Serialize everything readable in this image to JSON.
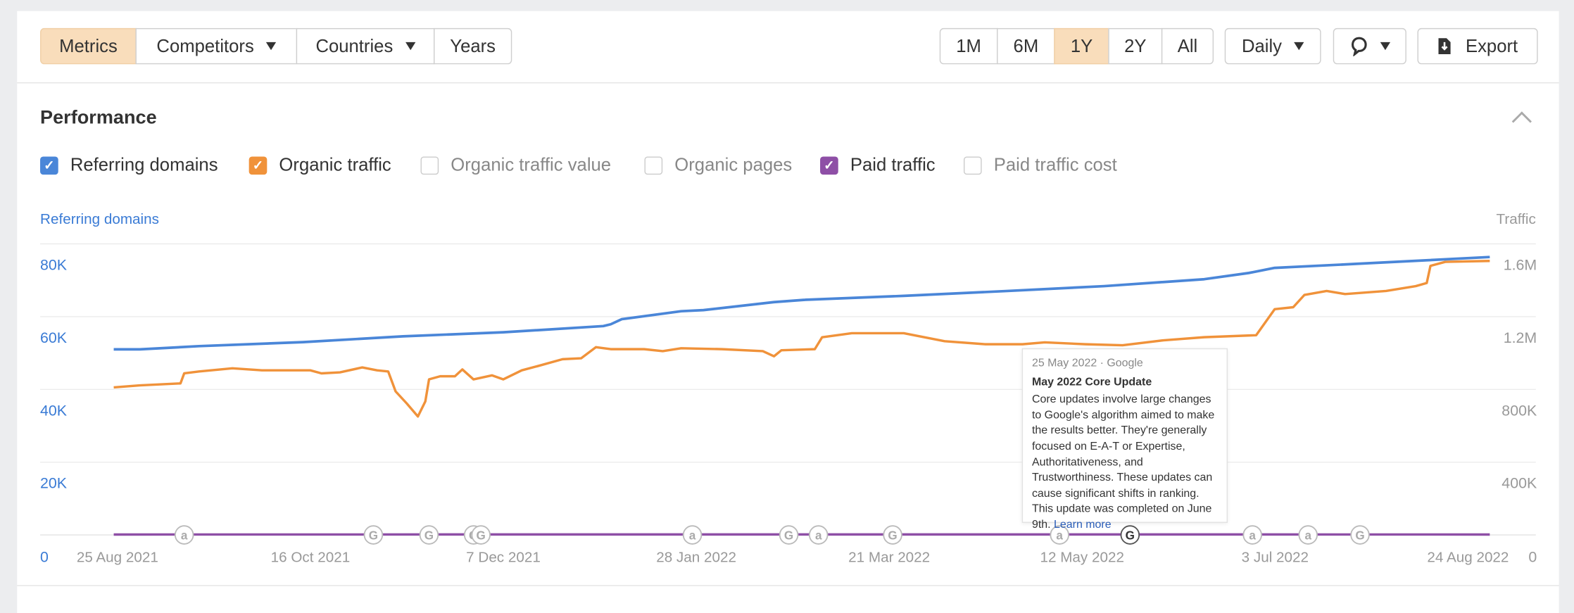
{
  "toolbar": {
    "left_tabs": [
      {
        "label": "Metrics",
        "active": true
      },
      {
        "label": "Competitors",
        "dropdown": true
      },
      {
        "label": "Countries",
        "dropdown": true
      },
      {
        "label": "Years"
      }
    ],
    "ranges": [
      {
        "label": "1M"
      },
      {
        "label": "6M"
      },
      {
        "label": "1Y",
        "active": true
      },
      {
        "label": "2Y"
      },
      {
        "label": "All"
      }
    ],
    "interval": "Daily",
    "annotations_icon": "speech-bubble-icon",
    "export_label": "Export",
    "export_icon": "download-file-icon",
    "active_color": "#f9ddbb"
  },
  "section": {
    "title": "Performance",
    "collapse_icon": "chevron-up-icon"
  },
  "metrics": [
    {
      "label": "Referring domains",
      "checked": true,
      "color": "#4a86d8"
    },
    {
      "label": "Organic traffic",
      "checked": true,
      "color": "#f0923a"
    },
    {
      "label": "Organic traffic value",
      "checked": false
    },
    {
      "label": "Organic pages",
      "checked": false
    },
    {
      "label": "Paid traffic",
      "checked": true,
      "color": "#8e4fa6"
    },
    {
      "label": "Paid traffic cost",
      "checked": false
    }
  ],
  "chart_data": {
    "type": "line",
    "left_axis_title": "Referring domains",
    "right_axis_title": "Traffic",
    "left_ticks": [
      "80K",
      "60K",
      "40K",
      "20K",
      "0"
    ],
    "right_ticks": [
      "1.6M",
      "1.2M",
      "800K",
      "400K",
      "0"
    ],
    "ylim_left": [
      0,
      80000
    ],
    "ylim_right": [
      0,
      1600000
    ],
    "x_ticks": [
      "25 Aug 2021",
      "16 Oct 2021",
      "7 Dec 2021",
      "28 Jan 2022",
      "21 Mar 2022",
      "12 May 2022",
      "3 Jul 2022",
      "24 Aug 2022"
    ],
    "grid": true,
    "series": [
      {
        "name": "Referring domains",
        "axis": "left",
        "color": "#4a86d8",
        "points": [
          [
            "2021-08-24",
            51000
          ],
          [
            "2021-08-31",
            51000
          ],
          [
            "2021-09-16",
            51900
          ],
          [
            "2021-10-14",
            53000
          ],
          [
            "2021-11-10",
            54600
          ],
          [
            "2021-12-07",
            55700
          ],
          [
            "2022-01-03",
            57400
          ],
          [
            "2022-01-05",
            57900
          ],
          [
            "2022-01-08",
            59300
          ],
          [
            "2022-01-24",
            61500
          ],
          [
            "2022-01-30",
            61800
          ],
          [
            "2022-02-18",
            64000
          ],
          [
            "2022-02-26",
            64600
          ],
          [
            "2022-03-25",
            65700
          ],
          [
            "2022-04-21",
            67000
          ],
          [
            "2022-05-18",
            68400
          ],
          [
            "2022-06-14",
            70300
          ],
          [
            "2022-06-26",
            72000
          ],
          [
            "2022-07-03",
            73400
          ],
          [
            "2022-07-25",
            74500
          ],
          [
            "2022-08-30",
            76400
          ]
        ]
      },
      {
        "name": "Organic traffic",
        "axis": "right",
        "color": "#f0923a",
        "points": [
          [
            "2021-08-24",
            811000
          ],
          [
            "2021-08-31",
            822000
          ],
          [
            "2021-09-11",
            833000
          ],
          [
            "2021-09-12",
            888000
          ],
          [
            "2021-09-16",
            899000
          ],
          [
            "2021-09-25",
            916000
          ],
          [
            "2021-10-03",
            905000
          ],
          [
            "2021-10-16",
            905000
          ],
          [
            "2021-10-19",
            888000
          ],
          [
            "2021-10-24",
            894000
          ],
          [
            "2021-10-30",
            921000
          ],
          [
            "2021-11-03",
            905000
          ],
          [
            "2021-11-06",
            899000
          ],
          [
            "2021-11-08",
            789000
          ],
          [
            "2021-11-11",
            723000
          ],
          [
            "2021-11-14",
            651000
          ],
          [
            "2021-11-16",
            734000
          ],
          [
            "2021-11-17",
            855000
          ],
          [
            "2021-11-20",
            872000
          ],
          [
            "2021-11-24",
            872000
          ],
          [
            "2021-11-26",
            910000
          ],
          [
            "2021-11-29",
            855000
          ],
          [
            "2021-12-04",
            877000
          ],
          [
            "2021-12-07",
            855000
          ],
          [
            "2021-12-12",
            905000
          ],
          [
            "2021-12-17",
            932000
          ],
          [
            "2021-12-23",
            966000
          ],
          [
            "2021-12-28",
            971000
          ],
          [
            "2022-01-01",
            1032000
          ],
          [
            "2022-01-05",
            1021000
          ],
          [
            "2022-01-14",
            1021000
          ],
          [
            "2022-01-19",
            1010000
          ],
          [
            "2022-01-24",
            1026000
          ],
          [
            "2022-02-04",
            1021000
          ],
          [
            "2022-02-15",
            1010000
          ],
          [
            "2022-02-18",
            982000
          ],
          [
            "2022-02-20",
            1015000
          ],
          [
            "2022-03-01",
            1021000
          ],
          [
            "2022-03-03",
            1087000
          ],
          [
            "2022-03-11",
            1109000
          ],
          [
            "2022-03-25",
            1109000
          ],
          [
            "2022-04-05",
            1065000
          ],
          [
            "2022-04-16",
            1048000
          ],
          [
            "2022-04-26",
            1048000
          ],
          [
            "2022-05-02",
            1059000
          ],
          [
            "2022-05-13",
            1048000
          ],
          [
            "2022-05-23",
            1043000
          ],
          [
            "2022-06-03",
            1070000
          ],
          [
            "2022-06-14",
            1087000
          ],
          [
            "2022-06-28",
            1098000
          ],
          [
            "2022-07-03",
            1241000
          ],
          [
            "2022-07-08",
            1252000
          ],
          [
            "2022-07-11",
            1319000
          ],
          [
            "2022-07-17",
            1341000
          ],
          [
            "2022-07-22",
            1324000
          ],
          [
            "2022-08-02",
            1341000
          ],
          [
            "2022-08-10",
            1368000
          ],
          [
            "2022-08-13",
            1385000
          ],
          [
            "2022-08-14",
            1479000
          ],
          [
            "2022-08-18",
            1501000
          ],
          [
            "2022-08-30",
            1506000
          ]
        ]
      },
      {
        "name": "Paid traffic",
        "axis": "right",
        "color": "#8e4fa6",
        "points": [
          [
            "2021-08-24",
            2000
          ],
          [
            "2021-12-01",
            2500
          ],
          [
            "2022-03-01",
            3000
          ],
          [
            "2022-06-01",
            2500
          ],
          [
            "2022-08-30",
            2000
          ]
        ]
      }
    ],
    "events": [
      {
        "date": "2021-09-12",
        "type": "a"
      },
      {
        "date": "2021-11-02",
        "type": "G"
      },
      {
        "date": "2021-11-17",
        "type": "G"
      },
      {
        "date": "2021-11-29",
        "type": "G"
      },
      {
        "date": "2021-12-01",
        "type": "G"
      },
      {
        "date": "2022-01-27",
        "type": "a"
      },
      {
        "date": "2022-02-22",
        "type": "G"
      },
      {
        "date": "2022-03-02",
        "type": "a"
      },
      {
        "date": "2022-03-22",
        "type": "G"
      },
      {
        "date": "2022-05-06",
        "type": "a"
      },
      {
        "date": "2022-05-25",
        "type": "G",
        "active": true
      },
      {
        "date": "2022-06-27",
        "type": "a"
      },
      {
        "date": "2022-07-12",
        "type": "a"
      },
      {
        "date": "2022-07-26",
        "type": "G"
      }
    ]
  },
  "tooltip": {
    "date_source": "25 May 2022 · Google",
    "title": "May 2022 Core Update",
    "body": "Core updates involve large changes to Google's algorithm aimed to make the results better. They're generally focused on E-A-T or Expertise, Authoritativeness, and Trustworthiness. These updates can cause significant shifts in ranking. This update was completed on June 9th.",
    "link": "Learn more"
  }
}
